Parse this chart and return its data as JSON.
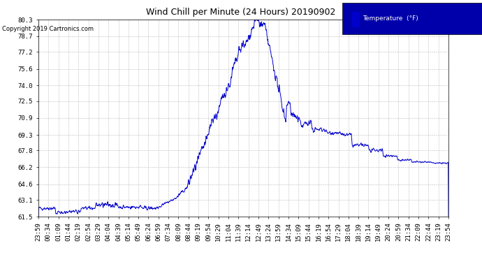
{
  "title": "Wind Chill per Minute (24 Hours) 20190902",
  "copyright": "Copyright 2019 Cartronics.com",
  "legend_label": "Temperature  (°F)",
  "line_color": "#0000CC",
  "background_color": "#ffffff",
  "yticks": [
    61.5,
    63.1,
    64.6,
    66.2,
    67.8,
    69.3,
    70.9,
    72.5,
    74.0,
    75.6,
    77.2,
    78.7,
    80.3
  ],
  "ylim": [
    61.5,
    80.3
  ],
  "x_labels": [
    "23:59",
    "00:34",
    "01:09",
    "01:44",
    "02:19",
    "02:54",
    "03:29",
    "04:04",
    "04:39",
    "05:14",
    "05:49",
    "06:24",
    "06:59",
    "07:34",
    "08:09",
    "08:44",
    "09:19",
    "09:54",
    "10:29",
    "11:04",
    "11:39",
    "12:14",
    "12:49",
    "13:24",
    "13:59",
    "14:34",
    "15:09",
    "15:44",
    "16:19",
    "16:54",
    "17:29",
    "18:04",
    "18:39",
    "19:14",
    "19:49",
    "20:24",
    "20:59",
    "21:34",
    "22:09",
    "22:44",
    "23:19",
    "23:54"
  ],
  "grid_color": "#aaaaaa",
  "title_fontsize": 9,
  "axis_fontsize": 6.5,
  "legend_bg": "#0000AA",
  "legend_text_color": "#ffffff",
  "copyright_fontsize": 6,
  "line_width": 0.7
}
